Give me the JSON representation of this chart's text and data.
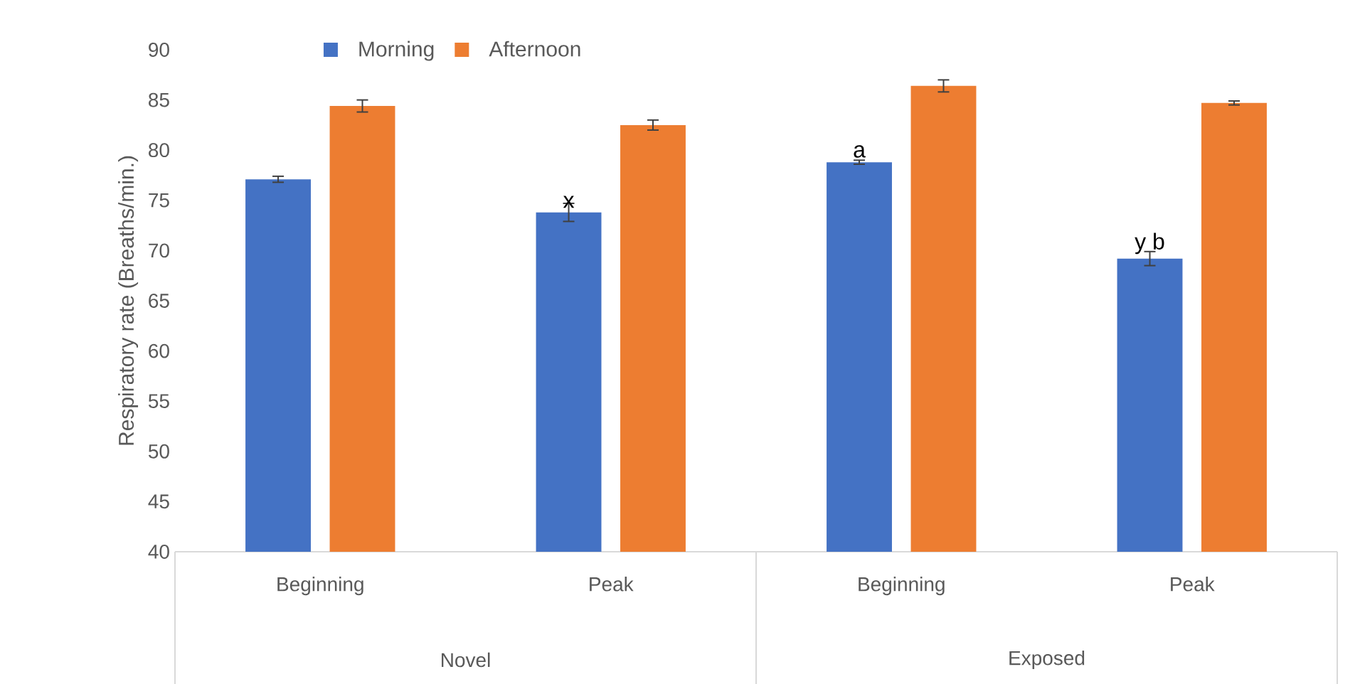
{
  "chart_data": {
    "type": "bar",
    "ylabel": "Respiratory rate (Breaths/min.)",
    "categories": [
      "Beginning",
      "Peak",
      "Beginning",
      "Peak"
    ],
    "series": [
      {
        "name": "Morning",
        "color": "#4472c4",
        "values": [
          77.1,
          73.8,
          78.8,
          69.2
        ],
        "errors": [
          0.3,
          0.9,
          0.2,
          0.7
        ]
      },
      {
        "name": "Afternoon",
        "color": "#ed7d31",
        "values": [
          84.4,
          82.5,
          86.4,
          84.7
        ],
        "errors": [
          0.6,
          0.5,
          0.6,
          0.2
        ]
      }
    ],
    "ylim": [
      40,
      90
    ],
    "yticks": [
      40,
      45,
      50,
      55,
      60,
      65,
      70,
      75,
      80,
      85,
      90
    ],
    "legend": "top",
    "grid": false,
    "annotations": [
      "Novel",
      "Exposed",
      {
        "text": "x",
        "y": 73.8
      },
      {
        "text": "a",
        "y": 78.8
      },
      {
        "text": "y b",
        "y": 69.2
      }
    ]
  }
}
